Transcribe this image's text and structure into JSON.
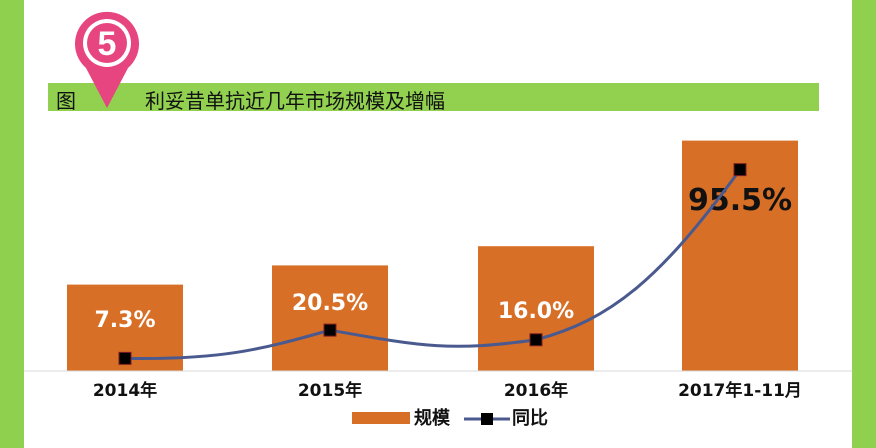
{
  "figure": {
    "badge_number": "5",
    "label": "图",
    "title": "利妥昔单抗近几年市场规模及增幅"
  },
  "colors": {
    "bar": "#d86f27",
    "line": "#4a5a8f",
    "marker": "#000000",
    "accent_green": "#92d050",
    "pin": "#e6457f"
  },
  "chart_data": {
    "type": "bar",
    "categories": [
      "2014年",
      "2015年",
      "2016年",
      "2017年1-11月"
    ],
    "series": [
      {
        "name": "规模",
        "type": "bar",
        "values": [
          36,
          44,
          52,
          96
        ]
      },
      {
        "name": "同比",
        "type": "line",
        "values": [
          7.3,
          20.5,
          16.0,
          95.5
        ],
        "labels": [
          "7.3%",
          "20.5%",
          "16.0%",
          "95.5%"
        ]
      }
    ],
    "legend": [
      "规模",
      "同比"
    ],
    "legend_position": "bottom",
    "grid": false
  }
}
